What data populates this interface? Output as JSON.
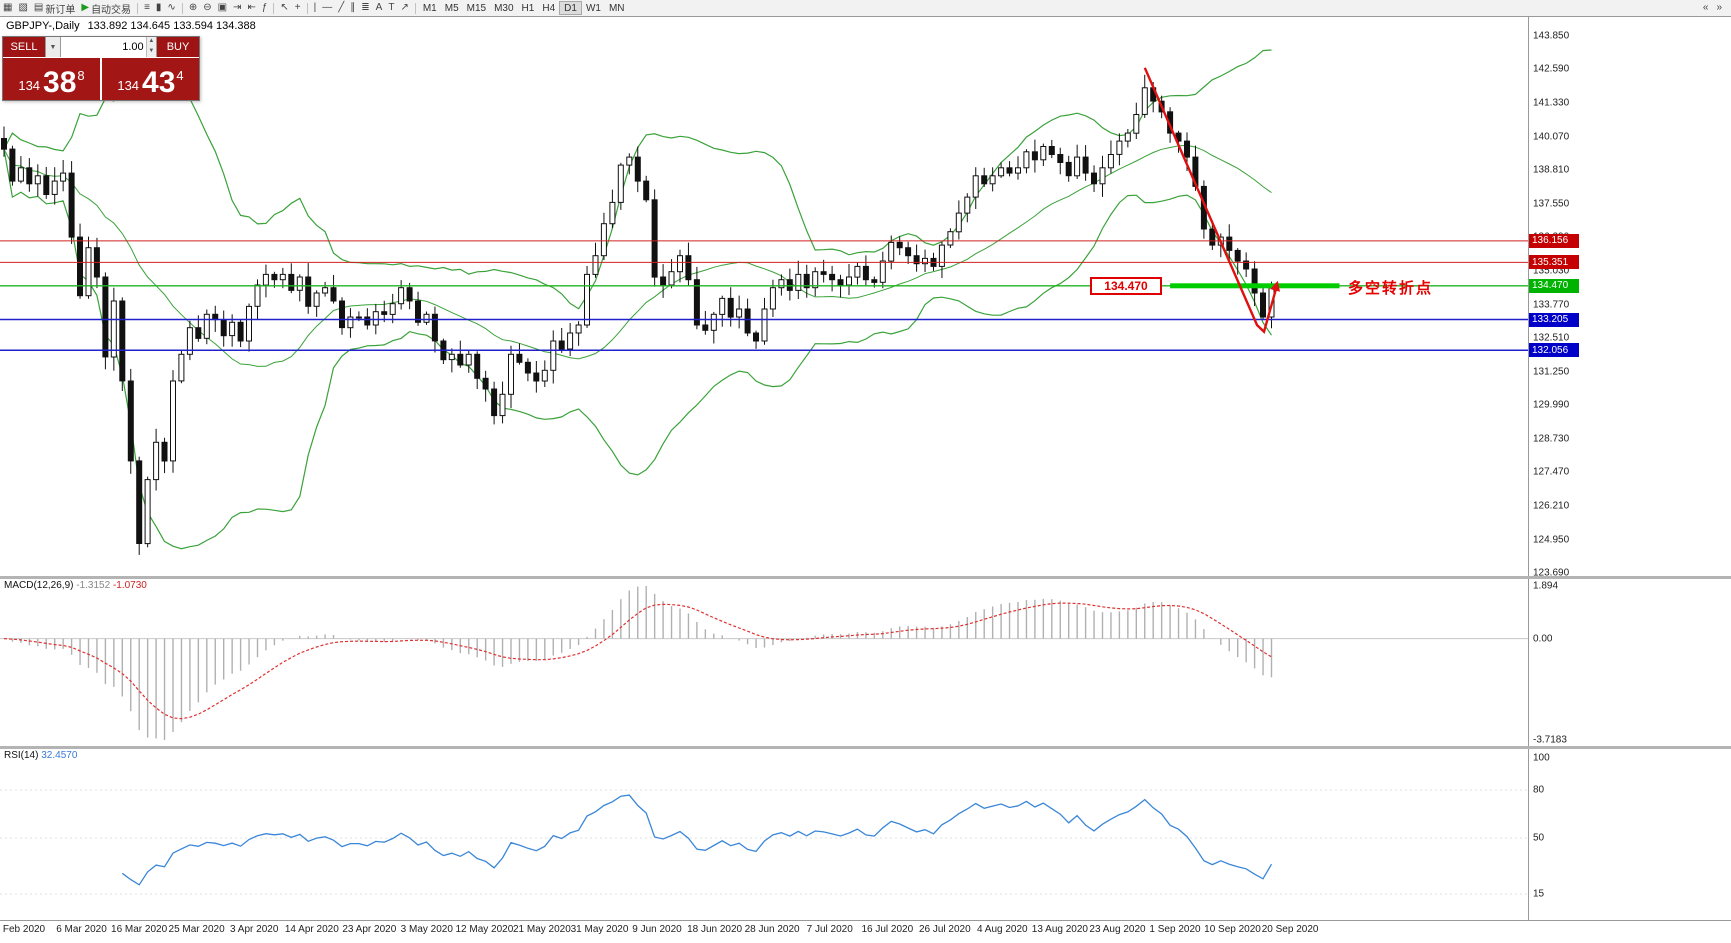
{
  "toolbar": {
    "items": [
      {
        "name": "new-chart",
        "glyph": "▦"
      },
      {
        "name": "chart-profiles",
        "glyph": "▧"
      },
      {
        "name": "new-order",
        "glyph": "▤",
        "label": "新订单"
      },
      {
        "name": "autotrading",
        "glyph": "▶",
        "label": "自动交易",
        "glyph_color": "#1f9a1f"
      },
      {
        "sep": true
      },
      {
        "name": "chart-bars",
        "glyph": "≡"
      },
      {
        "name": "chart-candlesticks",
        "glyph": "▮"
      },
      {
        "name": "chart-line",
        "glyph": "∿"
      },
      {
        "sep": true
      },
      {
        "name": "zoom-in",
        "glyph": "⊕"
      },
      {
        "name": "zoom-out",
        "glyph": "⊖"
      },
      {
        "name": "tile-windows",
        "glyph": "▣"
      },
      {
        "name": "auto-scroll",
        "glyph": "⇥"
      },
      {
        "name": "chart-shift",
        "glyph": "⇤"
      },
      {
        "name": "indicators-list",
        "glyph": "ƒ"
      },
      {
        "sep": true
      },
      {
        "name": "cursor",
        "glyph": "↖"
      },
      {
        "name": "crosshair",
        "glyph": "+"
      },
      {
        "sep": true
      },
      {
        "name": "vertical-line-tool",
        "glyph": "|"
      },
      {
        "name": "horizontal-line-tool",
        "glyph": "—"
      },
      {
        "name": "trendline-tool",
        "glyph": "╱"
      },
      {
        "name": "equidistant-channel-tool",
        "glyph": "∥"
      },
      {
        "name": "fibonacci-tool",
        "glyph": "≣"
      },
      {
        "name": "text-tool",
        "glyph": "A"
      },
      {
        "name": "text-label-tool",
        "glyph": "T"
      },
      {
        "name": "arrows-tool",
        "glyph": "↗"
      },
      {
        "sep": true
      }
    ],
    "timeframes": [
      "M1",
      "M5",
      "M15",
      "M30",
      "H1",
      "H4",
      "D1",
      "W1",
      "MN"
    ],
    "active_timeframe": "D1",
    "nav_left": "«",
    "nav_right": "»"
  },
  "chart": {
    "symbol_label": "GBPJPY-,Daily",
    "ohlc": "133.892 134.645 133.594 134.388"
  },
  "trade_panel": {
    "sell_label": "SELL",
    "buy_label": "BUY",
    "volume": "1.00",
    "sell_prefix": "134",
    "sell_big": "38",
    "sell_sup": "8",
    "buy_prefix": "134",
    "buy_big": "43",
    "buy_sup": "4"
  },
  "annotations": {
    "box_label": "134.470",
    "turn_label": "多空转折点"
  },
  "levels": [
    {
      "price": 136.156,
      "color": "#d02020",
      "lw": 1
    },
    {
      "price": 135.351,
      "color": "#d02020",
      "lw": 1
    },
    {
      "price": 134.47,
      "color": "#22b422",
      "lw": 1.4
    },
    {
      "price": 133.205,
      "color": "#2020cc",
      "lw": 1.5
    },
    {
      "price": 132.056,
      "color": "#2020cc",
      "lw": 1.5
    }
  ],
  "price_axis": {
    "labels": [
      "143.850",
      "142.590",
      "141.330",
      "140.070",
      "138.810",
      "137.550",
      "136.290",
      "135.030",
      "133.770",
      "132.510",
      "131.250",
      "129.990",
      "128.730",
      "127.470",
      "126.210",
      "124.950",
      "123.690"
    ],
    "badges": [
      {
        "text": "136.156",
        "color": "#c40000"
      },
      {
        "text": "135.351",
        "color": "#c40000"
      },
      {
        "text": "134.470",
        "color": "#00b300"
      },
      {
        "text": "133.205",
        "color": "#0000c8"
      },
      {
        "text": "132.056",
        "color": "#0000c8"
      }
    ]
  },
  "date_axis": [
    "Feb 2020",
    "6 Mar 2020",
    "16 Mar 2020",
    "25 Mar 2020",
    "3 Apr 2020",
    "14 Apr 2020",
    "23 Apr 2020",
    "3 May 2020",
    "12 May 2020",
    "21 May 2020",
    "31 May 2020",
    "9 Jun 2020",
    "18 Jun 2020",
    "28 Jun 2020",
    "7 Jul 2020",
    "16 Jul 2020",
    "26 Jul 2020",
    "4 Aug 2020",
    "13 Aug 2020",
    "23 Aug 2020",
    "1 Sep 2020",
    "10 Sep 2020",
    "20 Sep 2020"
  ],
  "chart_data": {
    "type": "candlestick",
    "symbol": "GBPJPY",
    "timeframe": "Daily",
    "x_range": [
      "Feb 2020",
      "20 Sep 2020"
    ],
    "y_range": [
      123.69,
      143.85
    ],
    "closes": [
      139.6,
      138.4,
      138.9,
      138.3,
      138.6,
      137.9,
      138.4,
      138.7,
      136.3,
      134.1,
      135.9,
      134.8,
      131.8,
      133.9,
      130.9,
      127.9,
      124.8,
      127.2,
      128.6,
      127.9,
      130.9,
      131.9,
      132.9,
      132.5,
      133.4,
      133.2,
      132.6,
      133.1,
      132.4,
      133.7,
      134.5,
      134.9,
      134.7,
      134.9,
      134.3,
      134.8,
      133.7,
      134.2,
      134.4,
      133.9,
      132.9,
      133.3,
      133.3,
      133.0,
      133.5,
      133.4,
      133.8,
      134.4,
      133.9,
      133.1,
      133.4,
      132.4,
      131.7,
      131.9,
      131.5,
      131.9,
      131.0,
      130.6,
      129.6,
      130.4,
      131.9,
      131.6,
      131.2,
      130.9,
      131.3,
      132.4,
      132.1,
      132.7,
      133.0,
      134.9,
      135.6,
      136.8,
      137.6,
      139.0,
      139.3,
      138.4,
      137.7,
      134.8,
      134.5,
      135.0,
      135.6,
      134.7,
      133.0,
      132.8,
      133.4,
      134.0,
      133.3,
      133.6,
      132.7,
      132.4,
      133.6,
      134.4,
      134.7,
      134.3,
      134.9,
      134.4,
      135.0,
      134.9,
      134.7,
      134.5,
      134.8,
      135.2,
      134.7,
      134.6,
      135.4,
      136.1,
      135.9,
      135.6,
      135.3,
      135.5,
      135.2,
      136.0,
      136.5,
      137.2,
      137.8,
      138.6,
      138.3,
      138.6,
      138.9,
      138.7,
      138.9,
      139.5,
      139.2,
      139.7,
      139.4,
      139.1,
      138.6,
      139.3,
      138.7,
      138.3,
      138.9,
      139.4,
      139.9,
      140.2,
      140.9,
      141.9,
      141.4,
      141.0,
      140.2,
      139.9,
      139.3,
      138.2,
      136.6,
      136.0,
      136.3,
      135.8,
      135.4,
      135.1,
      134.2,
      133.3,
      134.39
    ],
    "overlays": {
      "bollinger": {
        "period": 20,
        "deviation": 2,
        "color": "#3aa23a"
      }
    },
    "trendline": {
      "from_price": 142.65,
      "to_price": 132.85,
      "color": "#e01010",
      "note": "red downtrend line ending in V-bounce arrow"
    },
    "macd": {
      "name": "MACD(12,26,9)",
      "v1": "-1.3152",
      "v2": "-1.0730",
      "axis": [
        "1.894",
        "0.00",
        "-3.7183"
      ],
      "params": [
        12,
        26,
        9
      ]
    },
    "rsi": {
      "name": "RSI(14)",
      "value": "32.4570",
      "axis": [
        "100",
        "80",
        "50",
        "15"
      ],
      "period": 14
    }
  }
}
